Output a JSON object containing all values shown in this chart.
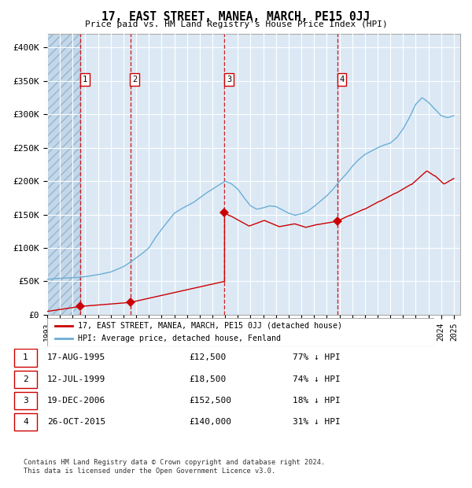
{
  "title": "17, EAST STREET, MANEA, MARCH, PE15 0JJ",
  "subtitle": "Price paid vs. HM Land Registry's House Price Index (HPI)",
  "legend_line1": "17, EAST STREET, MANEA, MARCH, PE15 0JJ (detached house)",
  "legend_line2": "HPI: Average price, detached house, Fenland",
  "footnote1": "Contains HM Land Registry data © Crown copyright and database right 2024.",
  "footnote2": "This data is licensed under the Open Government Licence v3.0.",
  "sale_labels": [
    {
      "id": 1,
      "date": "17-AUG-1995",
      "price": "£12,500",
      "pct": "77% ↓ HPI"
    },
    {
      "id": 2,
      "date": "12-JUL-1999",
      "price": "£18,500",
      "pct": "74% ↓ HPI"
    },
    {
      "id": 3,
      "date": "19-DEC-2006",
      "price": "£152,500",
      "pct": "18% ↓ HPI"
    },
    {
      "id": 4,
      "date": "26-OCT-2015",
      "price": "£140,000",
      "pct": "31% ↓ HPI"
    }
  ],
  "hpi_color": "#6baed6",
  "price_color": "#cc0000",
  "dot_color": "#cc0000",
  "vline_color": "#cc0000",
  "background_color": "#dce9f5",
  "hatch_facecolor": "#c2d8ea",
  "hatch_edgecolor": "#9ab4cc",
  "grid_color": "#ffffff",
  "ylim": [
    0,
    420000
  ],
  "yticks": [
    0,
    50000,
    100000,
    150000,
    200000,
    250000,
    300000,
    350000,
    400000
  ],
  "ytick_labels": [
    "£0",
    "£50K",
    "£100K",
    "£150K",
    "£200K",
    "£250K",
    "£300K",
    "£350K",
    "£400K"
  ],
  "sale_dates_float": [
    1995.625,
    1999.542,
    2006.958,
    2015.833
  ],
  "sale_prices": [
    12500,
    18500,
    152500,
    140000
  ],
  "hpi_anchors_x": [
    1993.0,
    1993.5,
    1994.0,
    1994.5,
    1995.0,
    1995.5,
    1996.0,
    1996.5,
    1997.0,
    1997.5,
    1998.0,
    1998.5,
    1999.0,
    1999.5,
    2000.0,
    2000.5,
    2001.0,
    2001.5,
    2002.0,
    2002.5,
    2003.0,
    2003.5,
    2004.0,
    2004.5,
    2005.0,
    2005.5,
    2006.0,
    2006.5,
    2007.0,
    2007.5,
    2008.0,
    2008.5,
    2009.0,
    2009.5,
    2010.0,
    2010.5,
    2011.0,
    2011.5,
    2012.0,
    2012.5,
    2013.0,
    2013.5,
    2014.0,
    2014.5,
    2015.0,
    2015.5,
    2016.0,
    2016.5,
    2017.0,
    2017.5,
    2018.0,
    2018.5,
    2019.0,
    2019.5,
    2020.0,
    2020.5,
    2021.0,
    2021.5,
    2022.0,
    2022.5,
    2023.0,
    2023.5,
    2024.0,
    2024.5,
    2025.0
  ],
  "hpi_anchors_y": [
    53000,
    54000,
    54500,
    55000,
    55500,
    56000,
    57000,
    58500,
    60000,
    62000,
    64000,
    68000,
    72000,
    78000,
    85000,
    92000,
    100000,
    115000,
    128000,
    140000,
    152000,
    158000,
    163000,
    168000,
    175000,
    182000,
    188000,
    194000,
    200000,
    196000,
    188000,
    175000,
    163000,
    158000,
    160000,
    163000,
    162000,
    157000,
    152000,
    149000,
    151000,
    155000,
    162000,
    170000,
    178000,
    188000,
    200000,
    210000,
    222000,
    232000,
    240000,
    245000,
    250000,
    254000,
    257000,
    265000,
    278000,
    295000,
    315000,
    325000,
    318000,
    308000,
    298000,
    295000,
    298000
  ]
}
